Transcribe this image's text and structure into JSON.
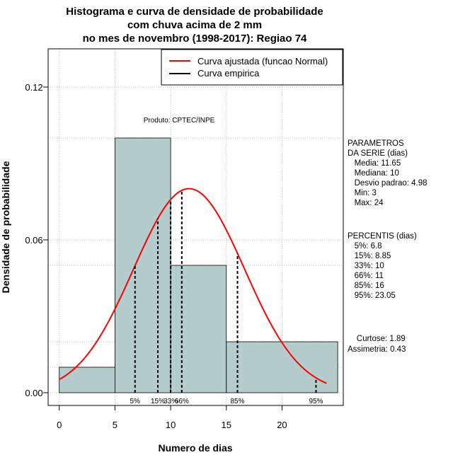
{
  "chart_data": {
    "type": "histogram",
    "title_lines": [
      "Histograma e curva de densidade de probabilidade",
      "com chuva acima de 2 mm",
      "no mes de novembro (1998-2017): Regiao 74"
    ],
    "xlabel": "Numero de dias",
    "ylabel": "Densidade de probabilidade",
    "xlim": [
      -1,
      25.5
    ],
    "ylim": [
      -0.005,
      0.135
    ],
    "x_ticks": [
      0,
      5,
      10,
      15,
      20
    ],
    "y_ticks": [
      0.0,
      0.06,
      0.12
    ],
    "y_tick_labels": [
      "0.00",
      "0.06",
      "0.12"
    ],
    "bins": [
      {
        "start": 0,
        "end": 5,
        "density": 0.01
      },
      {
        "start": 5,
        "end": 10,
        "density": 0.1
      },
      {
        "start": 10,
        "end": 15,
        "density": 0.05
      },
      {
        "start": 15,
        "end": 25,
        "density": 0.02
      }
    ],
    "bar_color": "#b4cccc",
    "normal_curve": {
      "mean": 11.65,
      "sd": 4.98,
      "x_range": [
        0,
        24
      ],
      "color": "#ff0000"
    },
    "percentile_lines": [
      {
        "label": "5%",
        "value": 6.8
      },
      {
        "label": "15%",
        "value": 8.85
      },
      {
        "label": "33%",
        "value": 10
      },
      {
        "label": "66%",
        "value": 11
      },
      {
        "label": "85%",
        "value": 16
      },
      {
        "label": "95%",
        "value": 23.05
      }
    ],
    "legend": [
      {
        "label": "Curva ajustada (funcao Normal)",
        "color": "#ff0000"
      },
      {
        "label": "Curva empirica",
        "color": "#000000"
      }
    ],
    "product_note": "Produto: CPTEC/INPE",
    "side_panel": {
      "params_lines": [
        "PARAMETROS",
        "DA SERIE (dias)",
        "   Media: 11.65",
        "   Mediana: 10",
        "   Desvio padrao: 4.98",
        "   Min: 3",
        "   Max: 24"
      ],
      "percentis_lines": [
        "PERCENTIS (dias)",
        "   5%: 6.8",
        "   15%: 8.85",
        "   33%: 10",
        "   66%: 11",
        "   85%: 16",
        "   95%: 23.05"
      ],
      "stats_lines": [
        "    Curtose: 1.89",
        "Assimetria: 0.43"
      ]
    }
  }
}
